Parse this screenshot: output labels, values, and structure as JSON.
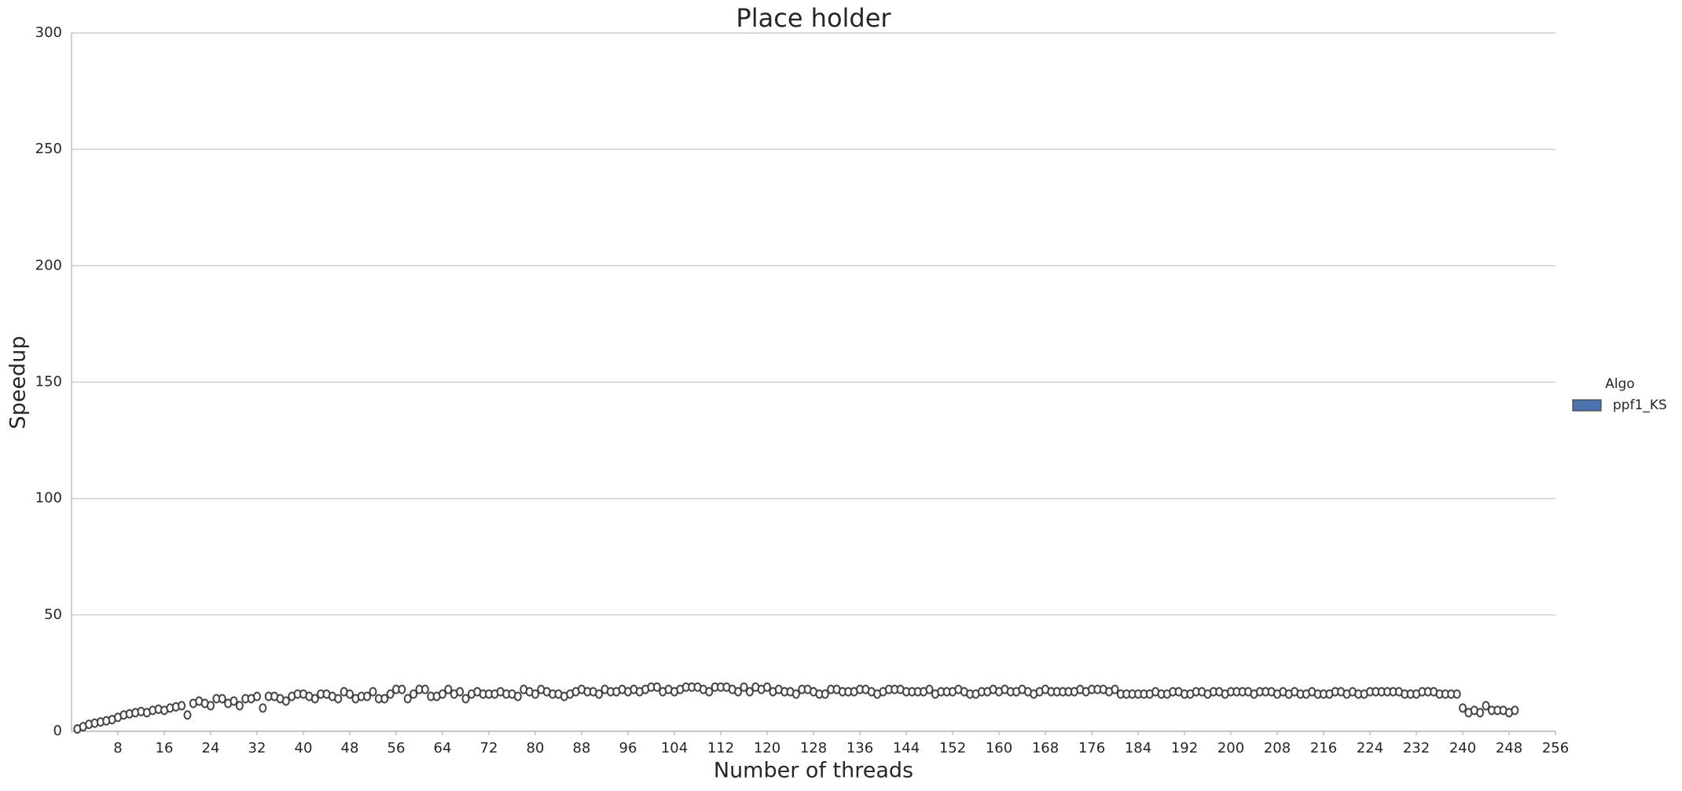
{
  "chart_data": {
    "type": "violin",
    "title": "Place holder",
    "x_label": "Number of threads",
    "y_label": "Speedup",
    "legend_title": "Algo",
    "legend": "right",
    "grid": true,
    "xlim": [
      0,
      256
    ],
    "xticks": [
      8,
      16,
      24,
      32,
      40,
      48,
      56,
      64,
      72,
      80,
      88,
      96,
      104,
      112,
      120,
      128,
      136,
      144,
      152,
      160,
      168,
      176,
      184,
      192,
      200,
      208,
      216,
      224,
      232,
      240,
      248,
      256
    ],
    "ylim": [
      0,
      300
    ],
    "yticks": [
      0,
      50,
      100,
      150,
      200,
      250,
      300
    ],
    "x": [
      1,
      2,
      3,
      4,
      5,
      6,
      7,
      8,
      9,
      10,
      11,
      12,
      13,
      14,
      15,
      16,
      17,
      18,
      19,
      20,
      21,
      22,
      23,
      24,
      25,
      26,
      27,
      28,
      29,
      30,
      31,
      32,
      33,
      34,
      35,
      36,
      37,
      38,
      39,
      40,
      41,
      42,
      43,
      44,
      45,
      46,
      47,
      48,
      49,
      50,
      51,
      52,
      53,
      54,
      55,
      56,
      57,
      58,
      59,
      60,
      61,
      62,
      63,
      64,
      65,
      66,
      67,
      68,
      69,
      70,
      71,
      72,
      73,
      74,
      75,
      76,
      77,
      78,
      79,
      80,
      81,
      82,
      83,
      84,
      85,
      86,
      87,
      88,
      89,
      90,
      91,
      92,
      93,
      94,
      95,
      96,
      97,
      98,
      99,
      100,
      101,
      102,
      103,
      104,
      105,
      106,
      107,
      108,
      109,
      110,
      111,
      112,
      113,
      114,
      115,
      116,
      117,
      118,
      119,
      120,
      121,
      122,
      123,
      124,
      125,
      126,
      127,
      128,
      129,
      130,
      131,
      132,
      133,
      134,
      135,
      136,
      137,
      138,
      139,
      140,
      141,
      142,
      143,
      144,
      145,
      146,
      147,
      148,
      149,
      150,
      151,
      152,
      153,
      154,
      155,
      156,
      157,
      158,
      159,
      160,
      161,
      162,
      163,
      164,
      165,
      166,
      167,
      168,
      169,
      170,
      171,
      172,
      173,
      174,
      175,
      176,
      177,
      178,
      179,
      180,
      181,
      182,
      183,
      184,
      185,
      186,
      187,
      188,
      189,
      190,
      191,
      192,
      193,
      194,
      195,
      196,
      197,
      198,
      199,
      200,
      201,
      202,
      203,
      204,
      205,
      206,
      207,
      208,
      209,
      210,
      211,
      212,
      213,
      214,
      215,
      216,
      217,
      218,
      219,
      220,
      221,
      222,
      223,
      224,
      225,
      226,
      227,
      228,
      229,
      230,
      231,
      232,
      233,
      234,
      235,
      236,
      237,
      238,
      239,
      240,
      241,
      242,
      243,
      244,
      245,
      246,
      247,
      248,
      249
    ],
    "series": [
      {
        "name": "ppf1_KS",
        "color": "#4c72b0",
        "values": [
          1,
          2,
          3,
          3.5,
          4,
          4.5,
          5,
          6,
          7,
          7.5,
          8,
          8.5,
          8,
          9,
          9.5,
          9,
          10,
          10.5,
          11,
          7,
          12,
          13,
          12,
          11,
          14,
          14,
          12,
          13,
          11,
          14,
          14,
          15,
          10,
          15,
          15,
          14,
          13,
          15,
          16,
          16,
          15,
          14,
          16,
          16,
          15,
          14,
          17,
          16,
          14,
          15,
          15,
          17,
          14,
          14,
          16,
          18,
          18,
          14,
          16,
          18,
          18,
          15,
          15,
          16,
          18,
          16,
          17,
          14,
          16,
          17,
          16,
          16,
          16,
          17,
          16,
          16,
          15,
          18,
          17,
          16,
          18,
          17,
          16,
          16,
          15,
          16,
          17,
          18,
          17,
          17,
          16,
          18,
          17,
          17,
          18,
          17,
          18,
          17,
          18,
          19,
          19,
          17,
          18,
          17,
          18,
          19,
          19,
          19,
          18,
          17,
          19,
          19,
          19,
          18,
          17,
          19,
          17,
          19,
          18,
          19,
          17,
          18,
          17,
          17,
          16,
          18,
          18,
          17,
          16,
          16,
          18,
          18,
          17,
          17,
          17,
          18,
          18,
          17,
          16,
          17,
          18,
          18,
          18,
          17,
          17,
          17,
          17,
          18,
          16,
          17,
          17,
          17,
          18,
          17,
          16,
          16,
          17,
          17,
          18,
          17,
          18,
          17,
          17,
          18,
          17,
          16,
          17,
          18,
          17,
          17,
          17,
          17,
          17,
          18,
          17,
          18,
          18,
          18,
          17,
          18,
          16,
          16,
          16,
          16,
          16,
          16,
          17,
          16,
          16,
          17,
          17,
          16,
          16,
          17,
          17,
          16,
          17,
          17,
          16,
          17,
          17,
          17,
          17,
          16,
          17,
          17,
          17,
          16,
          17,
          16,
          17,
          16,
          16,
          17,
          16,
          16,
          16,
          17,
          17,
          16,
          17,
          16,
          16,
          17,
          17,
          17,
          17,
          17,
          17,
          16,
          16,
          16,
          17,
          17,
          17,
          16,
          16,
          16,
          16,
          10,
          8,
          9,
          8,
          11,
          9,
          9,
          9,
          8,
          9
        ]
      }
    ]
  }
}
